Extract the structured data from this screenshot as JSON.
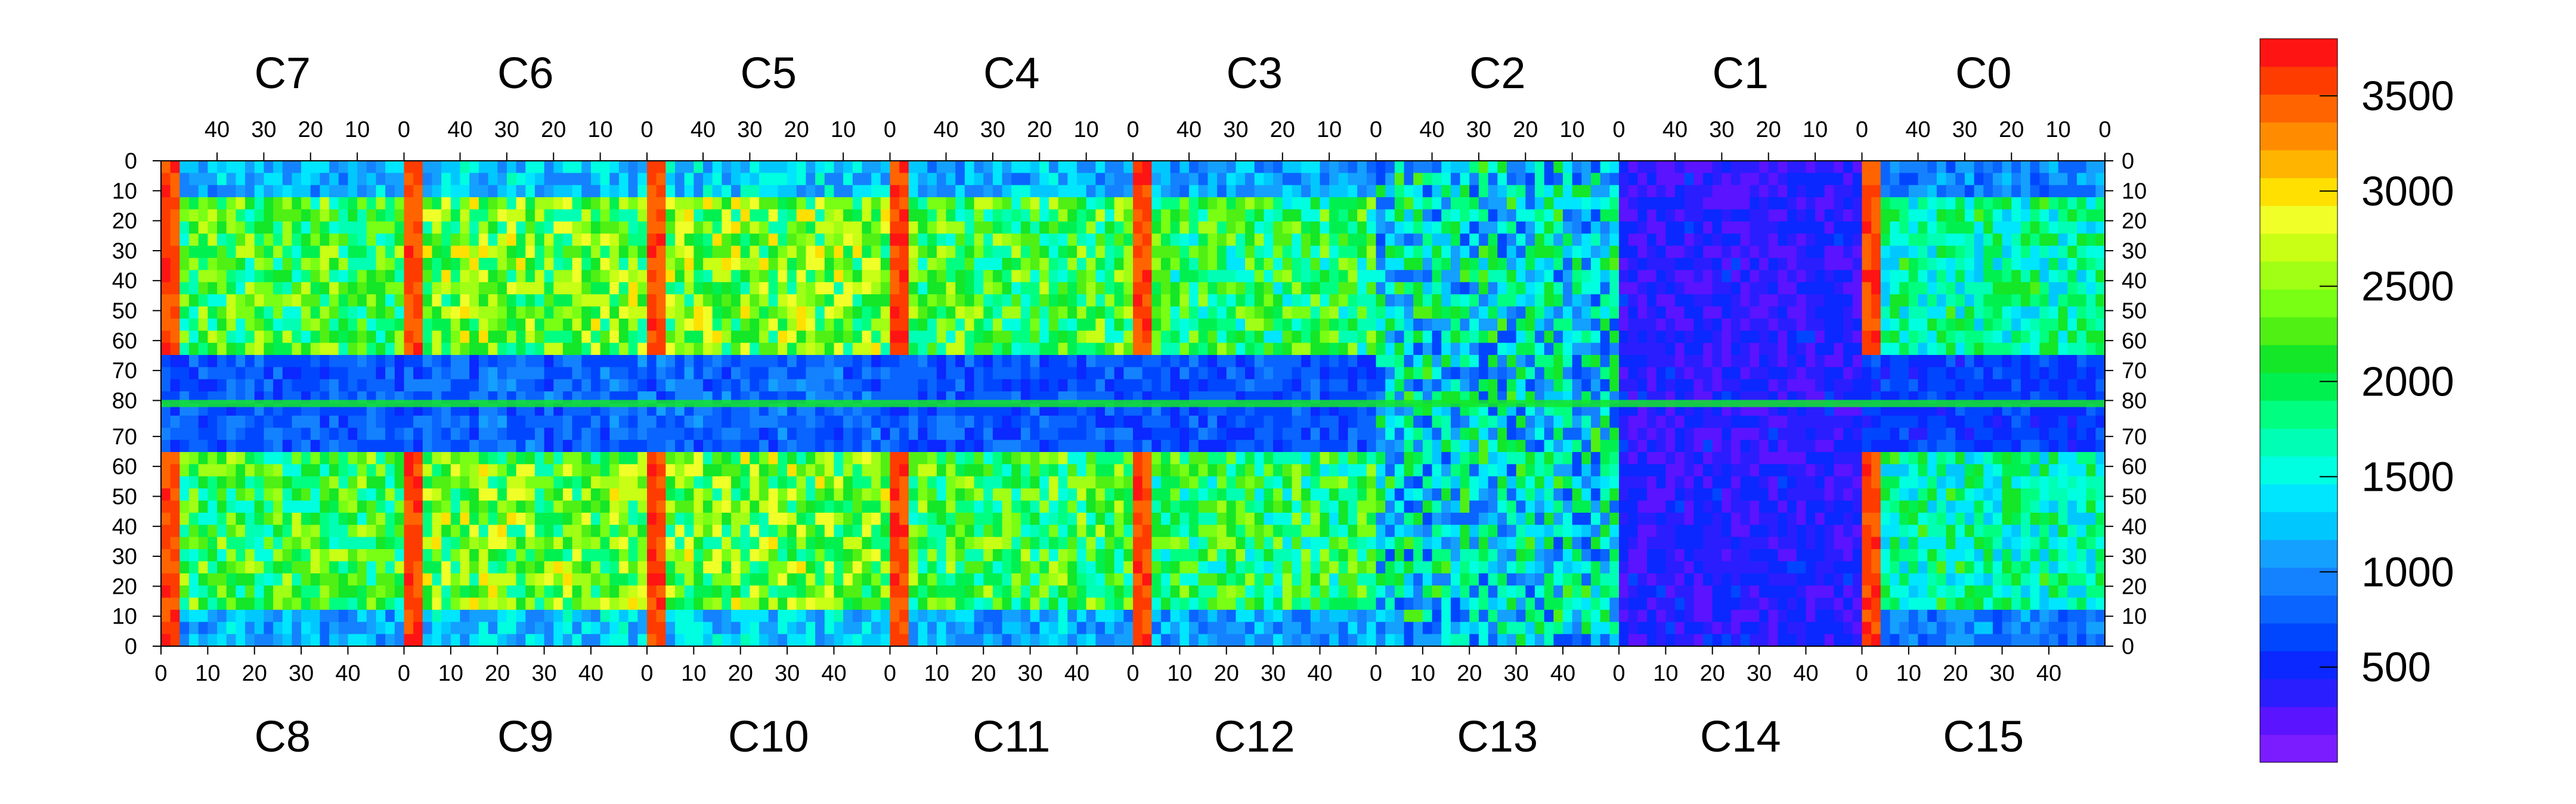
{
  "chart_data": {
    "type": "heatmap",
    "title": "",
    "xlabel": "",
    "ylabel": "",
    "top_chips": [
      "C7",
      "C6",
      "C5",
      "C4",
      "C3",
      "C2",
      "C1",
      "C0"
    ],
    "bottom_chips": [
      "C8",
      "C9",
      "C10",
      "C11",
      "C12",
      "C13",
      "C14",
      "C15"
    ],
    "top_x_ticks": [
      "40",
      "30",
      "20",
      "10",
      "0"
    ],
    "bottom_x_ticks": [
      "0",
      "10",
      "20",
      "30",
      "40"
    ],
    "y_ticks": [
      "0",
      "10",
      "20",
      "30",
      "40",
      "50",
      "60",
      "70",
      "80",
      "70",
      "60",
      "50",
      "40",
      "30",
      "20",
      "10",
      "0"
    ],
    "chip_columns": 52,
    "rows_per_half": 81,
    "zlim": [
      0,
      3800
    ],
    "colorbar_ticks": [
      500,
      1000,
      1500,
      2000,
      2500,
      3000,
      3500
    ],
    "colorbar_tick_labels": [
      "500",
      "1000",
      "1500",
      "2000",
      "2500",
      "3000",
      "3500"
    ],
    "colorbar_colors": [
      "#7a1cff",
      "#5a14ff",
      "#2a1eff",
      "#0a28ff",
      "#0046ff",
      "#0a64ff",
      "#1482ff",
      "#14a0ff",
      "#00c8ff",
      "#00e6ff",
      "#00ffe0",
      "#00ffb4",
      "#00ff80",
      "#00f050",
      "#14e628",
      "#50f014",
      "#78ff14",
      "#a0ff14",
      "#c8ff14",
      "#f0ff28",
      "#ffe000",
      "#ffb400",
      "#ff8c00",
      "#ff6400",
      "#ff3c00",
      "#ff1414"
    ],
    "regions": [
      {
        "chip": "C7",
        "level": 2100,
        "pattern": "active"
      },
      {
        "chip": "C6",
        "level": 2300,
        "pattern": "active"
      },
      {
        "chip": "C5",
        "level": 2300,
        "pattern": "active"
      },
      {
        "chip": "C4",
        "level": 2100,
        "pattern": "active"
      },
      {
        "chip": "C3",
        "level": 2000,
        "pattern": "active"
      },
      {
        "chip": "C2",
        "level": 1500,
        "pattern": "low"
      },
      {
        "chip": "C1",
        "level": 400,
        "pattern": "low"
      },
      {
        "chip": "C0",
        "level": 1700,
        "pattern": "active"
      }
    ]
  }
}
